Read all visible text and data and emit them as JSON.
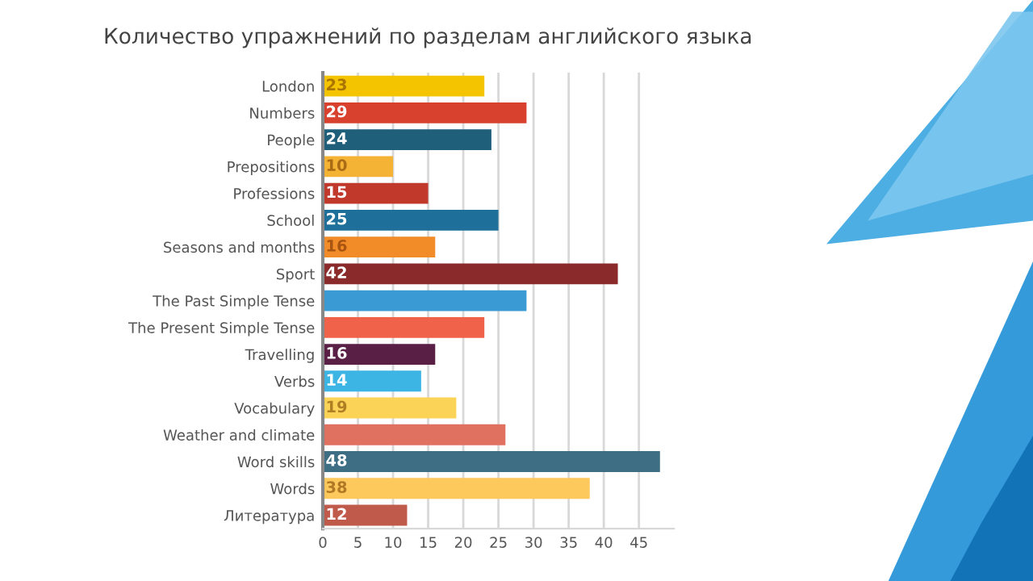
{
  "chart_data": {
    "type": "bar",
    "orientation": "horizontal",
    "title": "Количество упражнений по разделам английского языка",
    "categories": [
      "London",
      "Numbers",
      "People",
      "Prepositions",
      "Professions",
      "School",
      "Seasons and months",
      "Sport",
      "The Past Simple Tense",
      "The Present Simple Tense",
      "Travelling",
      "Verbs",
      "Vocabulary",
      "Weather and climate",
      "Word skills",
      "Words",
      "Литература"
    ],
    "values": [
      23,
      29,
      24,
      10,
      15,
      25,
      16,
      42,
      29,
      23,
      16,
      14,
      19,
      26,
      48,
      38,
      12
    ],
    "value_labels": [
      "23",
      "29",
      "24",
      "10",
      "15",
      "25",
      "16",
      "42",
      null,
      null,
      "16",
      "14",
      "19",
      null,
      "48",
      "38",
      "12"
    ],
    "colors": [
      "#f5c400",
      "#d9412f",
      "#1f5f7a",
      "#f5b335",
      "#c0392b",
      "#1e6f99",
      "#f28c28",
      "#8b2a2a",
      "#3a9ad4",
      "#f0624a",
      "#5a1f45",
      "#3cb5e5",
      "#fbd457",
      "#e07060",
      "#3e6e84",
      "#fdc95c",
      "#c05a4a"
    ],
    "xlim": [
      0,
      50
    ],
    "xticks": [
      0,
      5,
      10,
      15,
      20,
      25,
      30,
      35,
      40,
      45
    ],
    "grid": "x"
  }
}
